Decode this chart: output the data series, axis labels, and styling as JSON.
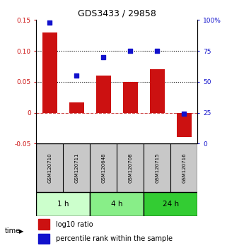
{
  "title": "GDS3433 / 29858",
  "samples": [
    "GSM120710",
    "GSM120711",
    "GSM120648",
    "GSM120708",
    "GSM120715",
    "GSM120716"
  ],
  "log10_ratio": [
    0.13,
    0.017,
    0.06,
    0.05,
    0.07,
    -0.04
  ],
  "percentile_rank": [
    98,
    55,
    70,
    75,
    75,
    24
  ],
  "ylim_left": [
    -0.05,
    0.15
  ],
  "ylim_right": [
    0,
    100
  ],
  "yticks_left": [
    -0.05,
    0,
    0.05,
    0.1,
    0.15
  ],
  "yticks_right": [
    0,
    25,
    50,
    75,
    100
  ],
  "ytick_labels_left": [
    "-0.05",
    "0",
    "0.05",
    "0.10",
    "0.15"
  ],
  "ytick_labels_right": [
    "0",
    "25",
    "50",
    "75",
    "100%"
  ],
  "dotted_lines": [
    0.05,
    0.1
  ],
  "bar_color": "#cc1111",
  "scatter_color": "#1111cc",
  "zero_line_color": "#cc4444",
  "groups": [
    {
      "label": "1 h",
      "indices": [
        0,
        1
      ],
      "color": "#ccffcc"
    },
    {
      "label": "4 h",
      "indices": [
        2,
        3
      ],
      "color": "#88ee88"
    },
    {
      "label": "24 h",
      "indices": [
        4,
        5
      ],
      "color": "#33cc33"
    }
  ],
  "legend_bar_label": "log10 ratio",
  "legend_scatter_label": "percentile rank within the sample",
  "time_label": "time",
  "sample_box_color": "#c8c8c8",
  "bg_color": "#ffffff"
}
